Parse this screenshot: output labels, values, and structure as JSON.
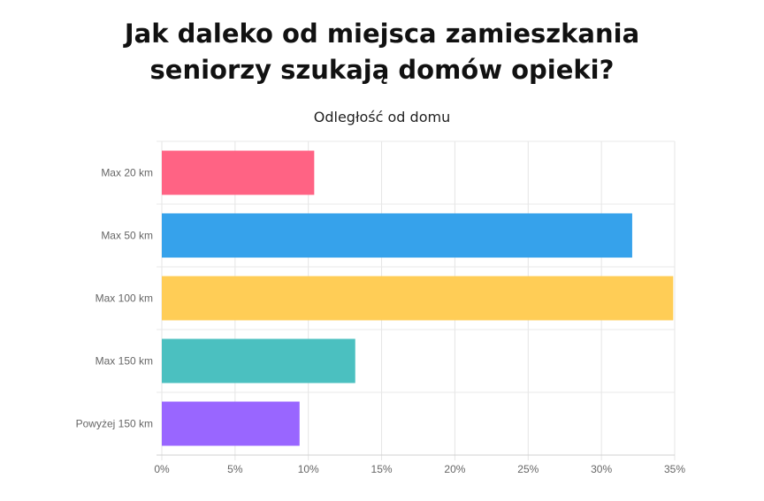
{
  "chart_data": {
    "type": "bar",
    "orientation": "horizontal",
    "title": [
      "Jak daleko od miejsca zamieszkania",
      "seniorzy szukają domów opieki?"
    ],
    "subtitle": "Odległość od domu",
    "categories": [
      "Max 20 km",
      "Max 50 km",
      "Max 100 km",
      "Max 150 km",
      "Powyżej 150 km"
    ],
    "values": [
      10.4,
      32.1,
      34.9,
      13.2,
      9.4
    ],
    "colors": [
      "#ff6384",
      "#36a2eb",
      "#ffcd56",
      "#4bc0c0",
      "#9966ff"
    ],
    "xlim": [
      0,
      35
    ],
    "xticks": [
      "0%",
      "5%",
      "10%",
      "15%",
      "20%",
      "25%",
      "30%",
      "35%"
    ],
    "grid": true,
    "xlabel": "",
    "ylabel": ""
  }
}
